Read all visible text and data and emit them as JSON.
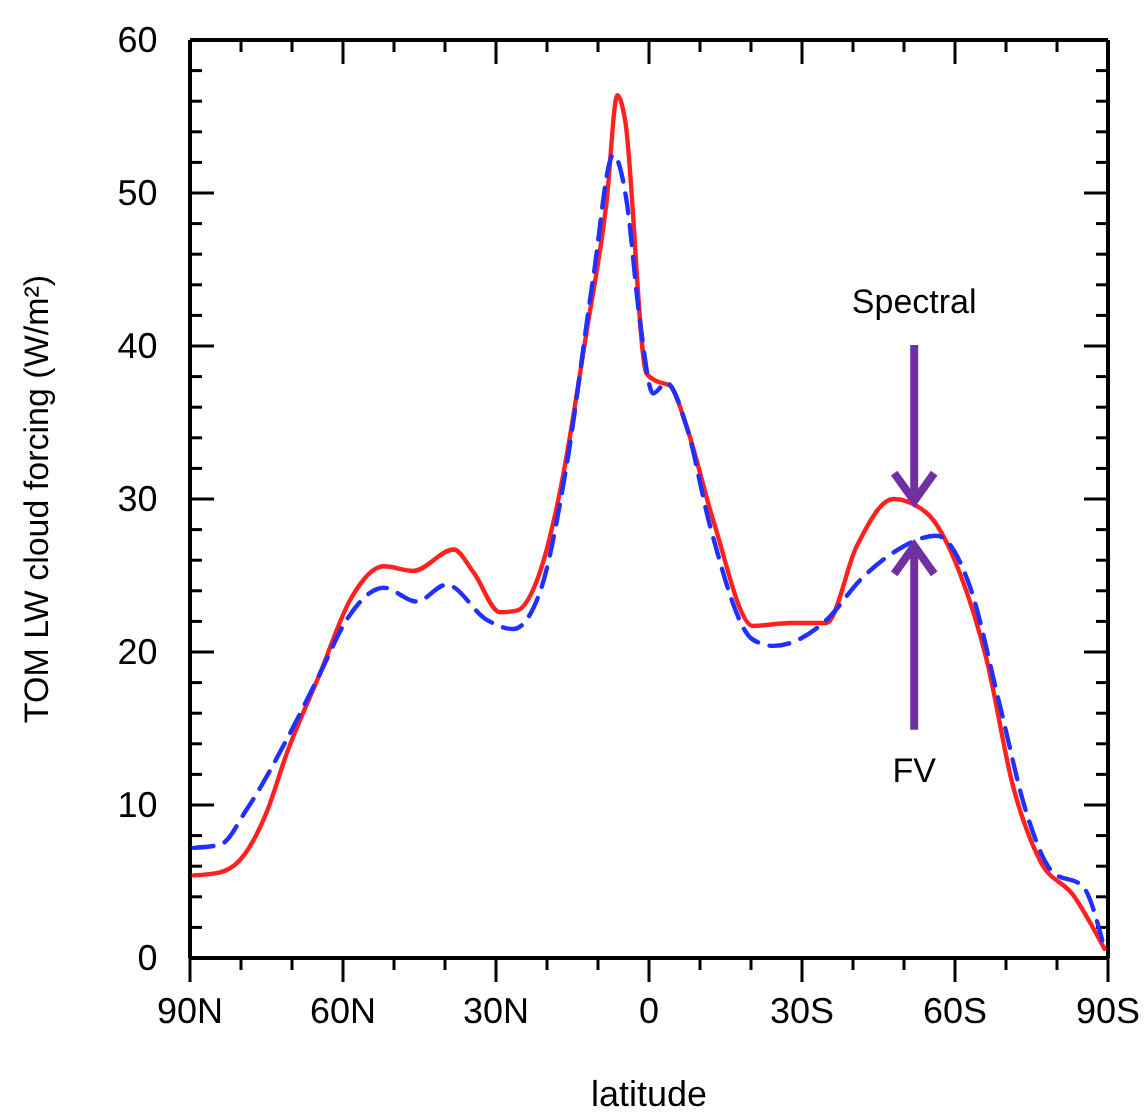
{
  "chart_data": {
    "type": "line",
    "xlabel": "latitude",
    "ylabel": "TOM LW cloud forcing (W/m²)",
    "xlim": [
      90,
      -90
    ],
    "xticks": [
      {
        "value": 90,
        "label": "90N"
      },
      {
        "value": 80,
        "label": null
      },
      {
        "value": 70,
        "label": null
      },
      {
        "value": 60,
        "label": "60N"
      },
      {
        "value": 50,
        "label": null
      },
      {
        "value": 40,
        "label": null
      },
      {
        "value": 30,
        "label": "30N"
      },
      {
        "value": 20,
        "label": null
      },
      {
        "value": 10,
        "label": null
      },
      0,
      {
        "value": -10,
        "label": null
      },
      {
        "value": -20,
        "label": null
      },
      {
        "value": -30,
        "label": "30S"
      },
      {
        "value": -40,
        "label": null
      },
      {
        "value": -50,
        "label": null
      },
      {
        "value": -60,
        "label": "60S"
      },
      {
        "value": -70,
        "label": null
      },
      {
        "value": -80,
        "label": null
      },
      {
        "value": -90,
        "label": "90S"
      }
    ],
    "ylim": [
      0,
      60
    ],
    "yticks": [
      0,
      {
        "value": 2,
        "label": null
      },
      {
        "value": 4,
        "label": null
      },
      {
        "value": 6,
        "label": null
      },
      {
        "value": 8,
        "label": null
      },
      10,
      {
        "value": 12,
        "label": null
      },
      {
        "value": 14,
        "label": null
      },
      {
        "value": 16,
        "label": null
      },
      {
        "value": 18,
        "label": null
      },
      20,
      {
        "value": 22,
        "label": null
      },
      {
        "value": 24,
        "label": null
      },
      {
        "value": 26,
        "label": null
      },
      {
        "value": 28,
        "label": null
      },
      30,
      {
        "value": 32,
        "label": null
      },
      {
        "value": 34,
        "label": null
      },
      {
        "value": 36,
        "label": null
      },
      {
        "value": 38,
        "label": null
      },
      40,
      {
        "value": 42,
        "label": null
      },
      {
        "value": 44,
        "label": null
      },
      {
        "value": 46,
        "label": null
      },
      {
        "value": 48,
        "label": null
      },
      50,
      {
        "value": 52,
        "label": null
      },
      {
        "value": 54,
        "label": null
      },
      {
        "value": 56,
        "label": null
      },
      {
        "value": 58,
        "label": null
      },
      60
    ],
    "grid": false,
    "legend": false,
    "marker": "none",
    "series": [
      {
        "color": "#ff2020",
        "line_style": "solid",
        "x": [
          89.3,
          84.1,
          80.2,
          75,
          71,
          64.5,
          58.6,
          52,
          46.2,
          38.3,
          34.4,
          29.2,
          26,
          21.4,
          17.5,
          12.3,
          8.3,
          6.2,
          4.7,
          0.5,
          -1.5,
          -4.1,
          -7.4,
          -12.6,
          -20.4,
          -27.6,
          -34.8,
          -40.7,
          -47.9,
          -54.4,
          -60.9,
          -66.2,
          -71.4,
          -76.6,
          -83.2,
          -89.3
        ],
        "values": [
          5.4,
          5.6,
          6.4,
          9.5,
          13.4,
          18.6,
          23.4,
          25.6,
          25.3,
          26.7,
          25.2,
          22.6,
          22.7,
          25.2,
          30.4,
          40.8,
          49.5,
          56.4,
          54.8,
          38.2,
          37.7,
          37.4,
          34.7,
          28.6,
          21.7,
          21.9,
          21.9,
          26.9,
          30.0,
          29.1,
          25.2,
          19.5,
          11.2,
          6.4,
          4.1,
          0.6
        ]
      },
      {
        "color": "#2030ff",
        "line_style": "dashed",
        "x": [
          89.3,
          84.1,
          78.9,
          71,
          64.5,
          59.3,
          52,
          45.6,
          39.7,
          31.8,
          26.6,
          21.4,
          16.2,
          11,
          7,
          4.4,
          1.8,
          -0.8,
          -3.4,
          -7.4,
          -12,
          -20.4,
          -24.4,
          -34.8,
          -41.4,
          -47.9,
          -56.4,
          -62.9,
          -68.8,
          -74,
          -79.2,
          -85,
          -89.3
        ],
        "values": [
          7.2,
          7.4,
          9.7,
          14.3,
          18.6,
          22.1,
          24.2,
          23.3,
          24.4,
          22.1,
          21.5,
          23.9,
          32.1,
          44.3,
          52.5,
          49.5,
          41.7,
          36.9,
          37.6,
          34.7,
          28.2,
          20.8,
          20.4,
          22.1,
          24.7,
          26.5,
          27.6,
          24.3,
          16.5,
          9.5,
          5.6,
          4.7,
          0.6
        ]
      }
    ],
    "annotations": [
      {
        "text": "Spectral",
        "x": -52,
        "y": 29.6
      },
      {
        "text": "FV",
        "x": -52,
        "y": 27.2
      }
    ]
  }
}
